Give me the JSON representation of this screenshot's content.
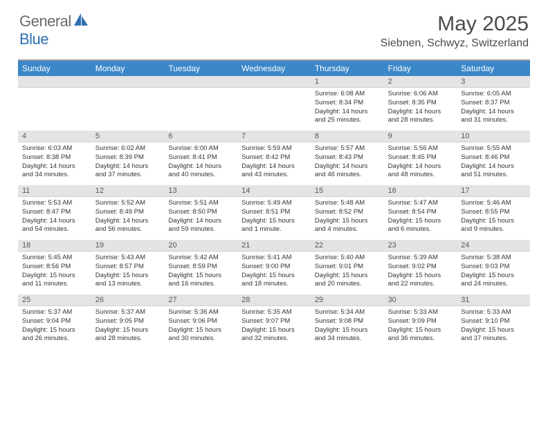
{
  "logo": {
    "text1": "General",
    "text2": "Blue"
  },
  "title": "May 2025",
  "location": "Siebnen, Schwyz, Switzerland",
  "colors": {
    "header_bg": "#3b87c8",
    "header_text": "#ffffff",
    "daynum_bg": "#e4e4e4",
    "border_top": "#9a9a9a",
    "logo_gray": "#6a6a6a",
    "logo_blue": "#2f6fb0"
  },
  "day_names": [
    "Sunday",
    "Monday",
    "Tuesday",
    "Wednesday",
    "Thursday",
    "Friday",
    "Saturday"
  ],
  "weeks": [
    [
      {
        "n": "",
        "sr": "",
        "ss": "",
        "dl": ""
      },
      {
        "n": "",
        "sr": "",
        "ss": "",
        "dl": ""
      },
      {
        "n": "",
        "sr": "",
        "ss": "",
        "dl": ""
      },
      {
        "n": "",
        "sr": "",
        "ss": "",
        "dl": ""
      },
      {
        "n": "1",
        "sr": "Sunrise: 6:08 AM",
        "ss": "Sunset: 8:34 PM",
        "dl": "Daylight: 14 hours and 25 minutes."
      },
      {
        "n": "2",
        "sr": "Sunrise: 6:06 AM",
        "ss": "Sunset: 8:35 PM",
        "dl": "Daylight: 14 hours and 28 minutes."
      },
      {
        "n": "3",
        "sr": "Sunrise: 6:05 AM",
        "ss": "Sunset: 8:37 PM",
        "dl": "Daylight: 14 hours and 31 minutes."
      }
    ],
    [
      {
        "n": "4",
        "sr": "Sunrise: 6:03 AM",
        "ss": "Sunset: 8:38 PM",
        "dl": "Daylight: 14 hours and 34 minutes."
      },
      {
        "n": "5",
        "sr": "Sunrise: 6:02 AM",
        "ss": "Sunset: 8:39 PM",
        "dl": "Daylight: 14 hours and 37 minutes."
      },
      {
        "n": "6",
        "sr": "Sunrise: 6:00 AM",
        "ss": "Sunset: 8:41 PM",
        "dl": "Daylight: 14 hours and 40 minutes."
      },
      {
        "n": "7",
        "sr": "Sunrise: 5:59 AM",
        "ss": "Sunset: 8:42 PM",
        "dl": "Daylight: 14 hours and 43 minutes."
      },
      {
        "n": "8",
        "sr": "Sunrise: 5:57 AM",
        "ss": "Sunset: 8:43 PM",
        "dl": "Daylight: 14 hours and 46 minutes."
      },
      {
        "n": "9",
        "sr": "Sunrise: 5:56 AM",
        "ss": "Sunset: 8:45 PM",
        "dl": "Daylight: 14 hours and 48 minutes."
      },
      {
        "n": "10",
        "sr": "Sunrise: 5:55 AM",
        "ss": "Sunset: 8:46 PM",
        "dl": "Daylight: 14 hours and 51 minutes."
      }
    ],
    [
      {
        "n": "11",
        "sr": "Sunrise: 5:53 AM",
        "ss": "Sunset: 8:47 PM",
        "dl": "Daylight: 14 hours and 54 minutes."
      },
      {
        "n": "12",
        "sr": "Sunrise: 5:52 AM",
        "ss": "Sunset: 8:49 PM",
        "dl": "Daylight: 14 hours and 56 minutes."
      },
      {
        "n": "13",
        "sr": "Sunrise: 5:51 AM",
        "ss": "Sunset: 8:50 PM",
        "dl": "Daylight: 14 hours and 59 minutes."
      },
      {
        "n": "14",
        "sr": "Sunrise: 5:49 AM",
        "ss": "Sunset: 8:51 PM",
        "dl": "Daylight: 15 hours and 1 minute."
      },
      {
        "n": "15",
        "sr": "Sunrise: 5:48 AM",
        "ss": "Sunset: 8:52 PM",
        "dl": "Daylight: 15 hours and 4 minutes."
      },
      {
        "n": "16",
        "sr": "Sunrise: 5:47 AM",
        "ss": "Sunset: 8:54 PM",
        "dl": "Daylight: 15 hours and 6 minutes."
      },
      {
        "n": "17",
        "sr": "Sunrise: 5:46 AM",
        "ss": "Sunset: 8:55 PM",
        "dl": "Daylight: 15 hours and 9 minutes."
      }
    ],
    [
      {
        "n": "18",
        "sr": "Sunrise: 5:45 AM",
        "ss": "Sunset: 8:56 PM",
        "dl": "Daylight: 15 hours and 11 minutes."
      },
      {
        "n": "19",
        "sr": "Sunrise: 5:43 AM",
        "ss": "Sunset: 8:57 PM",
        "dl": "Daylight: 15 hours and 13 minutes."
      },
      {
        "n": "20",
        "sr": "Sunrise: 5:42 AM",
        "ss": "Sunset: 8:59 PM",
        "dl": "Daylight: 15 hours and 16 minutes."
      },
      {
        "n": "21",
        "sr": "Sunrise: 5:41 AM",
        "ss": "Sunset: 9:00 PM",
        "dl": "Daylight: 15 hours and 18 minutes."
      },
      {
        "n": "22",
        "sr": "Sunrise: 5:40 AM",
        "ss": "Sunset: 9:01 PM",
        "dl": "Daylight: 15 hours and 20 minutes."
      },
      {
        "n": "23",
        "sr": "Sunrise: 5:39 AM",
        "ss": "Sunset: 9:02 PM",
        "dl": "Daylight: 15 hours and 22 minutes."
      },
      {
        "n": "24",
        "sr": "Sunrise: 5:38 AM",
        "ss": "Sunset: 9:03 PM",
        "dl": "Daylight: 15 hours and 24 minutes."
      }
    ],
    [
      {
        "n": "25",
        "sr": "Sunrise: 5:37 AM",
        "ss": "Sunset: 9:04 PM",
        "dl": "Daylight: 15 hours and 26 minutes."
      },
      {
        "n": "26",
        "sr": "Sunrise: 5:37 AM",
        "ss": "Sunset: 9:05 PM",
        "dl": "Daylight: 15 hours and 28 minutes."
      },
      {
        "n": "27",
        "sr": "Sunrise: 5:36 AM",
        "ss": "Sunset: 9:06 PM",
        "dl": "Daylight: 15 hours and 30 minutes."
      },
      {
        "n": "28",
        "sr": "Sunrise: 5:35 AM",
        "ss": "Sunset: 9:07 PM",
        "dl": "Daylight: 15 hours and 32 minutes."
      },
      {
        "n": "29",
        "sr": "Sunrise: 5:34 AM",
        "ss": "Sunset: 9:08 PM",
        "dl": "Daylight: 15 hours and 34 minutes."
      },
      {
        "n": "30",
        "sr": "Sunrise: 5:33 AM",
        "ss": "Sunset: 9:09 PM",
        "dl": "Daylight: 15 hours and 36 minutes."
      },
      {
        "n": "31",
        "sr": "Sunrise: 5:33 AM",
        "ss": "Sunset: 9:10 PM",
        "dl": "Daylight: 15 hours and 37 minutes."
      }
    ]
  ]
}
